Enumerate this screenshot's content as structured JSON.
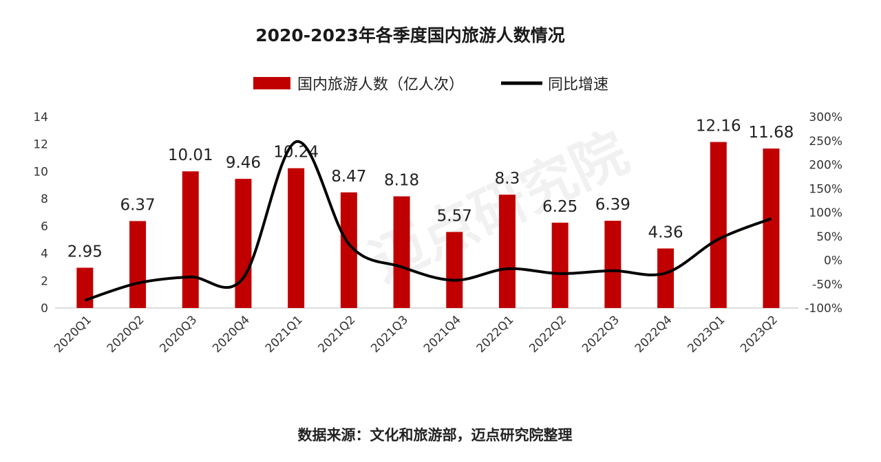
{
  "chart_data": {
    "type": "bar+line",
    "title": "2020-2023年各季度国内旅游人数情况",
    "categories": [
      "2020Q1",
      "2020Q2",
      "2020Q3",
      "2020Q4",
      "2021Q1",
      "2021Q2",
      "2021Q3",
      "2021Q4",
      "2022Q1",
      "2022Q2",
      "2022Q3",
      "2022Q4",
      "2023Q1",
      "2023Q2"
    ],
    "series": [
      {
        "name": "国内旅游人数（亿人次）",
        "type": "bar",
        "axis": "left",
        "color": "#C00000",
        "values": [
          2.95,
          6.37,
          10.01,
          9.46,
          10.24,
          8.47,
          8.18,
          5.57,
          8.3,
          6.25,
          6.39,
          4.36,
          12.16,
          11.68
        ],
        "labels": [
          "2.95",
          "6.37",
          "10.01",
          "9.46",
          "10.24",
          "8.47",
          "8.18",
          "5.57",
          "8.3",
          "6.25",
          "6.39",
          "4.36",
          "12.16",
          "11.68"
        ]
      },
      {
        "name": "同比增速",
        "type": "line",
        "axis": "right",
        "color": "#000000",
        "unit": "%",
        "values": [
          -84,
          -48,
          -35,
          -37,
          248,
          34,
          -14,
          -42,
          -18,
          -28,
          -22,
          -27,
          44,
          87
        ]
      }
    ],
    "left_axis": {
      "ylim": [
        0,
        14
      ],
      "ticks": [
        "0",
        "2",
        "4",
        "6",
        "8",
        "10",
        "12",
        "14"
      ]
    },
    "right_axis": {
      "ylim": [
        -100,
        300
      ],
      "ticks": [
        "-100%",
        "-50%",
        "0%",
        "50%",
        "100%",
        "150%",
        "200%",
        "250%",
        "300%"
      ]
    },
    "legend_position": "top-center",
    "grid": false
  },
  "source": "数据来源：文化和旅游部，迈点研究院整理",
  "watermark": "迈点研究院"
}
